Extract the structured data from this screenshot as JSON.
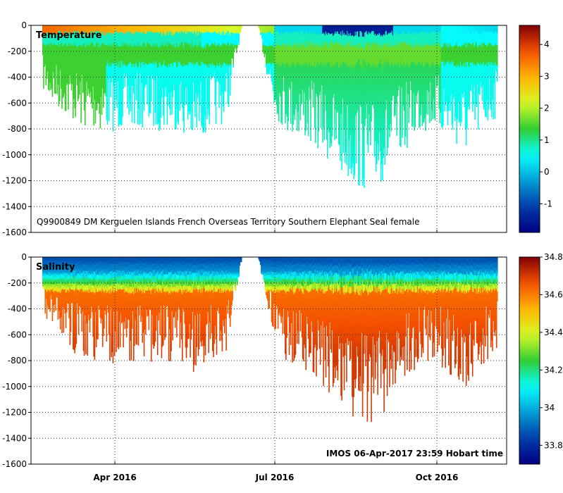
{
  "chart_data": [
    {
      "type": "heatmap",
      "title": "Temperature",
      "annotation": "Q9900849 DM Kerguelen Islands French Overseas Territory Southern Elephant Seal  female",
      "ylabel": "",
      "ylim": [
        -1600,
        0
      ],
      "y_ticks": [
        0,
        -200,
        -400,
        -600,
        -800,
        -1000,
        -1200,
        -1400,
        -1600
      ],
      "y_tick_labels": [
        "0",
        "-200",
        "-400",
        "-600",
        "-800",
        "-1000",
        "-1200",
        "-1400",
        "-1600"
      ],
      "x_ticks": [
        "Apr 2016",
        "Jul 2016",
        "Oct 2016"
      ],
      "grid": true,
      "colorbar": {
        "range": [
          -1.9,
          4.6
        ],
        "ticks": [
          4,
          3,
          2,
          1,
          0,
          -1
        ],
        "tick_labels": [
          "4",
          "3",
          "2",
          "1",
          "0",
          "-1"
        ]
      },
      "profile_depth_envelope": {
        "days": [
          0,
          5,
          15,
          25,
          35,
          45,
          55,
          65,
          75,
          85,
          95,
          105,
          115,
          125,
          135,
          145,
          155,
          165,
          175,
          185,
          195,
          205,
          215,
          225,
          235,
          245,
          255,
          265,
          275,
          285
        ],
        "max_depth": [
          500,
          600,
          700,
          800,
          820,
          820,
          800,
          800,
          820,
          800,
          950,
          800,
          750,
          0,
          0,
          700,
          850,
          900,
          1000,
          1150,
          1250,
          1300,
          1200,
          1000,
          850,
          800,
          900,
          1000,
          850,
          700
        ]
      }
    },
    {
      "type": "heatmap",
      "title": "Salinity",
      "annotation": "IMOS 06-Apr-2017 23:59 Hobart time",
      "ylabel": "",
      "ylim": [
        -1600,
        0
      ],
      "y_ticks": [
        0,
        -200,
        -400,
        -600,
        -800,
        -1000,
        -1200,
        -1400,
        -1600
      ],
      "y_tick_labels": [
        "0",
        "-200",
        "-400",
        "-600",
        "-800",
        "-1000",
        "-1200",
        "-1400",
        "-1600"
      ],
      "x_ticks": [
        "Apr 2016",
        "Jul 2016",
        "Oct 2016"
      ],
      "grid": true,
      "colorbar": {
        "range": [
          33.7,
          34.8
        ],
        "ticks": [
          34.8,
          34.6,
          34.4,
          34.2,
          34,
          33.8
        ],
        "tick_labels": [
          "34.8",
          "34.6",
          "34.4",
          "34.2",
          "34",
          "33.8"
        ]
      },
      "profile_depth_envelope": {
        "days": [
          0,
          5,
          15,
          25,
          35,
          45,
          55,
          65,
          75,
          85,
          95,
          105,
          115,
          125,
          135,
          145,
          155,
          165,
          175,
          185,
          195,
          205,
          215,
          225,
          235,
          245,
          255,
          265,
          275,
          285
        ],
        "max_depth": [
          500,
          600,
          700,
          800,
          820,
          820,
          800,
          800,
          820,
          800,
          950,
          800,
          750,
          0,
          0,
          700,
          850,
          900,
          1000,
          1150,
          1250,
          1300,
          1200,
          1000,
          850,
          800,
          900,
          1000,
          850,
          700
        ]
      }
    }
  ]
}
